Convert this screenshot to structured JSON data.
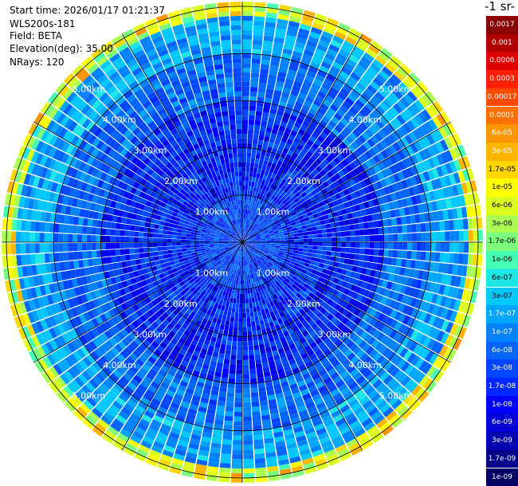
{
  "info": {
    "start_time": "Start time: 2026/01/17 01:21:37",
    "device": "WLS200s-181",
    "field": "Field: BETA",
    "elevation": "Elevation(deg): 35.00",
    "nrays": "NRays: 120"
  },
  "colorbar": {
    "units_label": "-1 sr-",
    "ticks": [
      "0.0017",
      "0.001",
      "0.0006",
      "0.0003",
      "0.00017",
      "0.0001",
      "6e-05",
      "3e-05",
      "1.7e-05",
      "1e-05",
      "6e-06",
      "3e-06",
      "1.7e-06",
      "1e-06",
      "6e-07",
      "3e-07",
      "1.7e-07",
      "1e-07",
      "6e-08",
      "3e-08",
      "1.7e-08",
      "1e-08",
      "6e-09",
      "3e-09",
      "1.7e-09",
      "1e-09"
    ],
    "colors": [
      "#8b0000",
      "#b00000",
      "#dd0000",
      "#ff2000",
      "#ff4a00",
      "#ff7000",
      "#ff9600",
      "#ffb400",
      "#ffd700",
      "#ffff00",
      "#dcff1e",
      "#aaff50",
      "#7cff7c",
      "#44ffb4",
      "#1ee6e6",
      "#00c8ff",
      "#00a5ff",
      "#0082ff",
      "#0064ff",
      "#0046ff",
      "#0028ff",
      "#0000ff",
      "#0000d6",
      "#0000b0",
      "#00008a",
      "#000064"
    ]
  },
  "chart_data": {
    "type": "heatmap",
    "projection": "polar (PPI scan)",
    "field": "BETA",
    "elevation_deg": 35.0,
    "n_rays": 120,
    "range_rings_km": [
      1.0,
      2.0,
      3.0,
      4.0,
      5.0
    ],
    "ring_labels": [
      "1.00km",
      "2.00km",
      "3.00km",
      "4.00km",
      "5.00km"
    ],
    "max_range_km": 5.1,
    "spokes_deg": [
      0,
      30,
      60,
      90,
      120,
      150,
      180,
      210,
      240,
      270,
      300,
      330
    ],
    "color_scale": "log",
    "value_range": [
      1e-09,
      0.0017
    ],
    "typical_values": {
      "inner_0_to_1km": "3e-08",
      "mid_1_to_3km": "1.7e-08",
      "ring_3_to_4km": "6e-08",
      "outer_4_to_5km": "1.7e-07",
      "edge_5km": "1.7e-06"
    }
  }
}
